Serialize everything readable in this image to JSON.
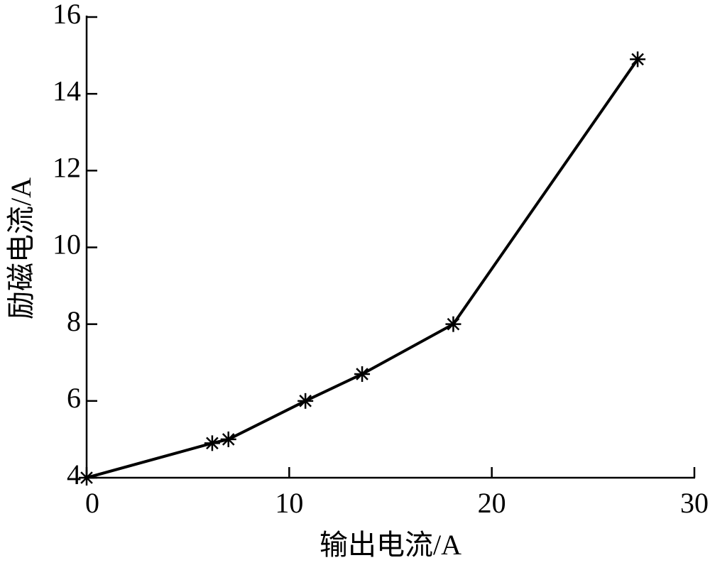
{
  "chart_data": {
    "type": "line",
    "x_label": "输出电流/A",
    "y_label": "励磁电流/A",
    "series": [
      {
        "color": "#000000",
        "x": [
          0,
          6.2,
          7.0,
          10.8,
          13.6,
          18.1,
          27.2
        ],
        "values": [
          4,
          4.9,
          5.0,
          6.0,
          6.7,
          8.0,
          14.9
        ]
      }
    ],
    "xlim": [
      0,
      30
    ],
    "xticks": [
      0,
      10,
      20,
      30
    ],
    "ylim": [
      4,
      16
    ],
    "yticks": [
      4,
      6,
      8,
      10,
      12,
      14,
      16
    ]
  }
}
